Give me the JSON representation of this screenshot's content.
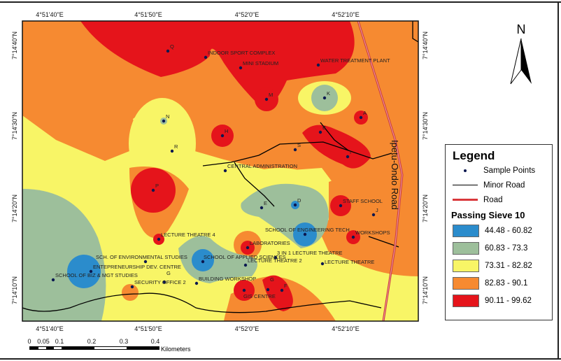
{
  "map": {
    "top_ticks": [
      "4°51'40\"E",
      "4°51'50\"E",
      "4°52'0\"E",
      "4°52'10\"E"
    ],
    "bottom_ticks": [
      "4°51'40\"E",
      "4°51'50\"E",
      "4°52'0\"E",
      "4°52'10\"E"
    ],
    "left_ticks": [
      "7°14'40\"N",
      "7°14'30\"N",
      "7°14'20\"N",
      "7°14'10\"N"
    ],
    "right_ticks": [
      "7°14'40\"N",
      "7°14'30\"N",
      "7°14'20\"N",
      "7°14'10\"N"
    ],
    "road_name": "Ipetu-Ondo Road",
    "points": [
      "Q",
      "INDOOR SPORT COMPLEX",
      "MINI STADIUM",
      "WATER TREATMENT PLANT",
      "M",
      "K",
      "N",
      "A",
      "H",
      "B",
      "R",
      "S",
      "I",
      "CENTRAL ADMINISTRATION",
      "P",
      "E",
      "D",
      "STAFF SCHOOL",
      "J",
      "SCHOOL OF ENGINEERING TECH",
      "WORKSHOPS",
      "LECTURE THEATRE 4",
      "LABORATORIES",
      "3 IN 1 LECTURE THEATRE",
      "SCH. OF ENVIRONMENTAL STUDIES",
      "SCHOOL OF APPLIED SCIENCES",
      "LECTURE THEATRE 2",
      "LECTURE THEATRE",
      "ENTEPRENEURSHIP DEV. CENTRE",
      "SCHOOL OF BIZ & MGT STUDIES",
      "G",
      "SECURITY OFFICE 2",
      "BUILDING WORKSHOP",
      "G",
      "GIS CENTRE",
      "F"
    ]
  },
  "north": "N",
  "scale": {
    "ticks": [
      "0",
      "0.05",
      "0.1",
      "0.2",
      "0.3",
      "0.4"
    ],
    "unit": "Kilometers"
  },
  "legend": {
    "title": "Legend",
    "items": [
      "Sample Points",
      "Minor Road",
      "Road"
    ],
    "subtitle": "Passing Sieve 10",
    "classes": [
      {
        "label": "44.48 - 60.82",
        "color": "#2b8ccc"
      },
      {
        "label": "60.83 - 73.3",
        "color": "#9dbf9b"
      },
      {
        "label": "73.31 - 82.82",
        "color": "#f8f566"
      },
      {
        "label": "82.83 - 90.1",
        "color": "#f68a31"
      },
      {
        "label": "90.11 - 99.62",
        "color": "#e5141b"
      }
    ]
  }
}
